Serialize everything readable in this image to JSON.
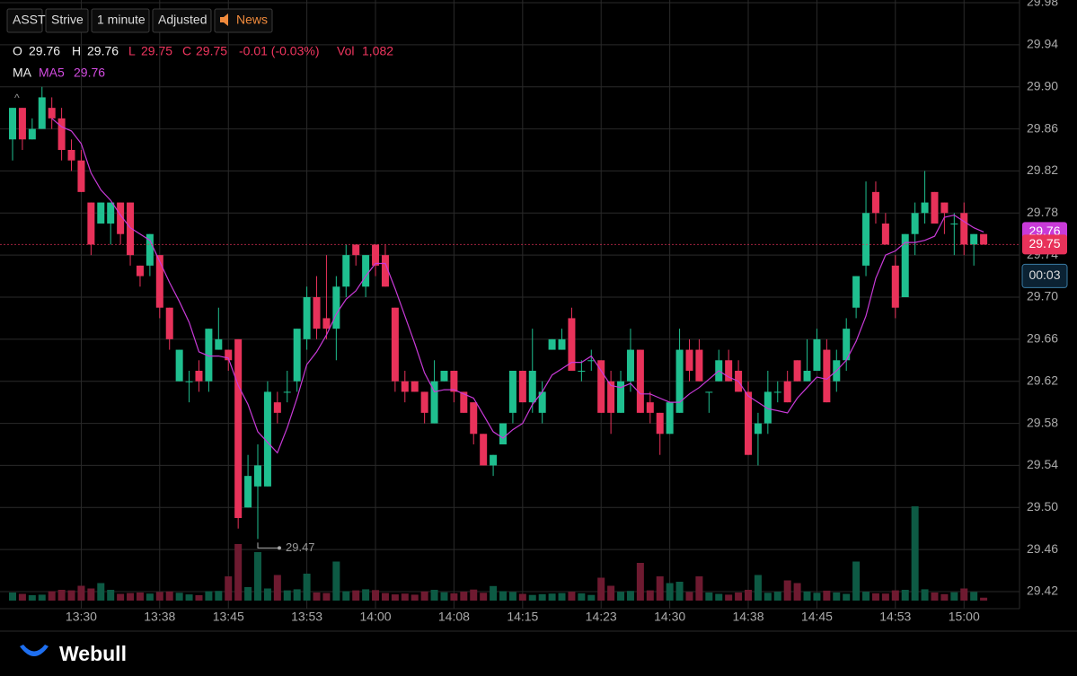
{
  "toolbar": [
    "ASST",
    "Strive",
    "1 minute",
    "Adjusted",
    "News"
  ],
  "legend": {
    "ohlc": [
      {
        "label": "O",
        "value": "29.76"
      },
      {
        "label": "H",
        "value": "29.76"
      },
      {
        "label": "L",
        "value": "29.75"
      },
      {
        "label": "C",
        "value": "29.75"
      }
    ],
    "change": "-0.01 (-0.03%)",
    "vol_label": "Vol",
    "vol_value": "1,082",
    "ma_label": "MA"
  },
  "collapse": "^",
  "brand": "Webull",
  "chart_data": {
    "type": "candlestick",
    "up_color": "#1fbf8f",
    "down_color": "#e8325a",
    "up_volume_color": "#0d5a44",
    "down_volume_color": "#6e1a30",
    "grid": true,
    "categories": [
      null,
      null,
      null,
      null,
      null,
      null,
      null,
      "13:30",
      null,
      null,
      null,
      null,
      null,
      null,
      null,
      "13:38",
      null,
      null,
      null,
      null,
      null,
      null,
      "13:45",
      null,
      null,
      null,
      null,
      null,
      null,
      null,
      "13:53",
      null,
      null,
      null,
      null,
      null,
      null,
      "14:00",
      null,
      null,
      null,
      null,
      null,
      null,
      null,
      "14:08",
      null,
      null,
      null,
      null,
      null,
      null,
      "14:15",
      null,
      null,
      null,
      null,
      null,
      null,
      null,
      "14:23",
      null,
      null,
      null,
      null,
      null,
      null,
      "14:30",
      null,
      null,
      null,
      null,
      null,
      null,
      null,
      "14:38",
      null,
      null,
      null,
      null,
      null,
      null,
      "14:45",
      null,
      null,
      null,
      null,
      null,
      null,
      null,
      "14:53",
      null,
      null,
      null,
      null,
      null,
      null,
      "15:00",
      null,
      null
    ],
    "open": [
      29.85,
      29.88,
      29.85,
      29.86,
      29.88,
      29.87,
      29.84,
      29.83,
      29.79,
      29.77,
      29.77,
      29.79,
      29.79,
      29.73,
      29.73,
      29.74,
      29.69,
      29.62,
      29.62,
      29.63,
      29.62,
      29.65,
      29.65,
      29.66,
      29.5,
      29.52,
      29.52,
      29.6,
      29.61,
      29.62,
      29.66,
      29.7,
      29.68,
      29.67,
      29.71,
      29.75,
      29.71,
      29.75,
      29.74,
      29.69,
      29.62,
      29.62,
      29.61,
      29.58,
      29.62,
      29.63,
      29.61,
      29.6,
      29.57,
      29.54,
      29.56,
      29.59,
      29.63,
      29.6,
      29.59,
      29.65,
      29.65,
      29.68,
      29.63,
      29.64,
      29.64,
      29.62,
      29.59,
      29.62,
      29.65,
      29.6,
      29.59,
      29.57,
      29.59,
      29.65,
      29.65,
      29.61,
      29.62,
      29.64,
      29.63,
      29.61,
      29.57,
      29.58,
      29.61,
      29.62,
      29.64,
      29.62,
      29.63,
      29.65,
      29.62,
      29.64,
      29.69,
      29.73,
      29.8,
      29.77,
      29.73,
      29.7,
      29.76,
      29.78,
      29.8,
      29.79,
      29.77,
      29.78,
      29.75,
      29.76
    ],
    "high": [
      29.88,
      29.88,
      29.87,
      29.9,
      29.89,
      29.88,
      29.85,
      29.84,
      29.79,
      29.79,
      29.79,
      29.79,
      29.79,
      29.73,
      29.76,
      29.74,
      29.69,
      29.65,
      29.63,
      29.64,
      29.67,
      29.69,
      29.65,
      29.66,
      29.55,
      29.56,
      29.62,
      29.61,
      29.63,
      29.67,
      29.71,
      29.72,
      29.74,
      29.72,
      29.75,
      29.75,
      29.74,
      29.75,
      29.75,
      29.69,
      29.63,
      29.62,
      29.61,
      29.64,
      29.63,
      29.63,
      29.61,
      29.6,
      29.57,
      29.55,
      29.58,
      29.63,
      29.63,
      29.67,
      29.62,
      29.66,
      29.67,
      29.69,
      29.64,
      29.65,
      29.64,
      29.63,
      29.63,
      29.67,
      29.65,
      29.61,
      29.59,
      29.6,
      29.67,
      29.66,
      29.66,
      29.61,
      29.65,
      29.65,
      29.64,
      29.62,
      29.59,
      29.63,
      29.62,
      29.63,
      29.64,
      29.66,
      29.67,
      29.66,
      29.65,
      29.68,
      29.72,
      29.81,
      29.81,
      29.78,
      29.74,
      29.76,
      29.79,
      29.82,
      29.8,
      29.79,
      29.78,
      29.79,
      29.76,
      29.76
    ],
    "low": [
      29.83,
      29.84,
      29.85,
      29.86,
      29.86,
      29.83,
      29.82,
      29.8,
      29.74,
      29.77,
      29.75,
      29.75,
      29.73,
      29.71,
      29.72,
      29.68,
      29.65,
      29.62,
      29.6,
      29.61,
      29.61,
      29.65,
      29.63,
      29.48,
      29.5,
      29.47,
      29.52,
      29.58,
      29.6,
      29.61,
      29.65,
      29.66,
      29.66,
      29.64,
      29.7,
      29.73,
      29.7,
      29.72,
      29.71,
      29.61,
      29.6,
      29.61,
      29.58,
      29.58,
      29.62,
      29.6,
      29.59,
      29.56,
      29.54,
      29.53,
      29.56,
      29.58,
      29.6,
      29.59,
      29.58,
      29.65,
      29.65,
      29.63,
      29.62,
      29.63,
      29.59,
      29.57,
      29.59,
      29.61,
      29.59,
      29.58,
      29.55,
      29.57,
      29.59,
      29.62,
      29.62,
      29.59,
      29.62,
      29.62,
      29.61,
      29.55,
      29.54,
      29.57,
      29.6,
      29.6,
      29.62,
      29.62,
      29.63,
      29.6,
      29.61,
      29.63,
      29.68,
      29.72,
      29.77,
      29.75,
      29.68,
      29.7,
      29.74,
      29.77,
      29.77,
      29.76,
      29.74,
      29.74,
      29.73,
      29.75
    ],
    "close": [
      29.88,
      29.85,
      29.86,
      29.89,
      29.87,
      29.84,
      29.83,
      29.8,
      29.75,
      29.79,
      29.79,
      29.76,
      29.74,
      29.72,
      29.76,
      29.69,
      29.66,
      29.65,
      29.62,
      29.62,
      29.67,
      29.66,
      29.64,
      29.49,
      29.53,
      29.54,
      29.61,
      29.59,
      29.61,
      29.67,
      29.7,
      29.67,
      29.67,
      29.71,
      29.74,
      29.74,
      29.74,
      29.73,
      29.71,
      29.62,
      29.61,
      29.61,
      29.59,
      29.62,
      29.63,
      29.61,
      29.59,
      29.57,
      29.54,
      29.55,
      29.58,
      29.63,
      29.6,
      29.63,
      29.61,
      29.66,
      29.66,
      29.63,
      29.63,
      29.64,
      29.59,
      29.59,
      29.62,
      29.65,
      29.59,
      29.59,
      29.57,
      29.6,
      29.65,
      29.63,
      29.62,
      29.61,
      29.64,
      29.62,
      29.61,
      29.55,
      29.58,
      29.61,
      29.61,
      29.6,
      29.62,
      29.63,
      29.66,
      29.6,
      29.64,
      29.67,
      29.72,
      29.78,
      29.78,
      29.75,
      29.69,
      29.76,
      29.78,
      29.79,
      29.77,
      29.78,
      29.77,
      29.75,
      29.76,
      29.75
    ],
    "volume": [
      3000,
      2500,
      2000,
      2200,
      3500,
      4000,
      3800,
      5500,
      4500,
      6500,
      4000,
      2500,
      2800,
      3000,
      2600,
      3200,
      3400,
      2900,
      2300,
      2000,
      3500,
      3600,
      9000,
      21000,
      5000,
      18000,
      4500,
      9500,
      3800,
      4200,
      10000,
      3000,
      2800,
      14500,
      3500,
      3800,
      4200,
      3900,
      2800,
      2300,
      2600,
      2200,
      3400,
      4000,
      3100,
      2700,
      3300,
      4100,
      2900,
      5400,
      3500,
      3200,
      2500,
      2100,
      2400,
      2600,
      2800,
      3300,
      2700,
      2100,
      8500,
      5500,
      3300,
      3600,
      14000,
      3800,
      9000,
      6500,
      7000,
      3200,
      9000,
      3000,
      2500,
      2200,
      3000,
      4000,
      9500,
      2900,
      3300,
      7500,
      6500,
      3400,
      2900,
      3700,
      3000,
      2500,
      14500,
      3300,
      2700,
      2600,
      3800,
      4000,
      35000,
      4200,
      3000,
      2400,
      3100,
      4500,
      3200,
      1082
    ],
    "vlim": [
      0,
      40000
    ],
    "ma5": {
      "name": "MA5",
      "label": "29.76",
      "color": "#c93ad8",
      "values": [
        null,
        null,
        null,
        null,
        29.87,
        29.862,
        29.858,
        29.846,
        29.818,
        29.802,
        29.792,
        29.778,
        29.766,
        29.76,
        29.754,
        29.734,
        29.714,
        29.696,
        29.676,
        29.648,
        29.644,
        29.644,
        29.642,
        29.616,
        29.598,
        29.572,
        29.562,
        29.552,
        29.576,
        29.604,
        29.636,
        29.648,
        29.664,
        29.684,
        29.698,
        29.706,
        29.72,
        29.732,
        29.732,
        29.708,
        29.682,
        29.656,
        29.628,
        29.61,
        29.612,
        29.612,
        29.608,
        29.604,
        29.588,
        29.572,
        29.566,
        29.574,
        29.58,
        29.598,
        29.61,
        29.626,
        29.632,
        29.638,
        29.638,
        29.644,
        29.63,
        29.616,
        29.614,
        29.618,
        29.608,
        29.608,
        29.604,
        29.6,
        29.6,
        29.608,
        29.614,
        29.622,
        29.63,
        29.624,
        29.62,
        29.606,
        29.6,
        29.594,
        29.592,
        29.59,
        29.604,
        29.614,
        29.624,
        29.622,
        29.63,
        29.64,
        29.658,
        29.682,
        29.718,
        29.74,
        29.744,
        29.752,
        29.752,
        29.754,
        29.758,
        29.776,
        29.778,
        29.772,
        29.766,
        29.762
      ]
    },
    "ylim": [
      29.42,
      29.98
    ],
    "yticks": [
      29.42,
      29.46,
      {
        "value": 29.5,
        "label": "29.50"
      },
      29.54,
      29.58,
      29.62,
      29.66,
      {
        "value": 29.7,
        "label": "29.70"
      },
      29.74,
      29.78,
      29.82,
      29.86,
      {
        "value": 29.9,
        "label": "29.90"
      },
      29.94,
      29.98
    ],
    "last_price": {
      "value": 29.75,
      "label": "29.75"
    },
    "countdown": "00:03",
    "low_annotation": {
      "value": 29.47,
      "label": "29.47"
    }
  }
}
